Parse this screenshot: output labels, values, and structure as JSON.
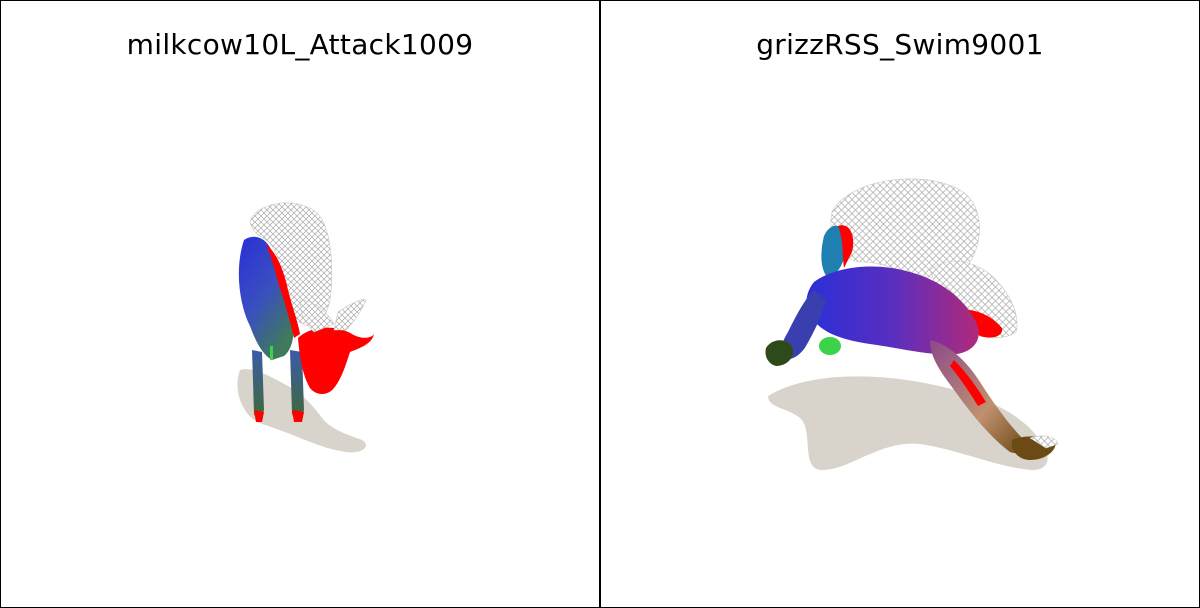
{
  "panels": [
    {
      "title": "milkcow10L_Attack1009",
      "subject": "cow"
    },
    {
      "title": "grizzRSS_Swim9001",
      "subject": "bear"
    }
  ],
  "colors": {
    "background": "#ffffff",
    "border": "#000000",
    "shadow": "#d8d4cb",
    "mesh": "#bdbdbd",
    "red": "#ff0000",
    "blue": "#2a2fd8",
    "green": "#3bd34a",
    "purple": "#8a2a9a",
    "brown": "#6b4a14"
  }
}
